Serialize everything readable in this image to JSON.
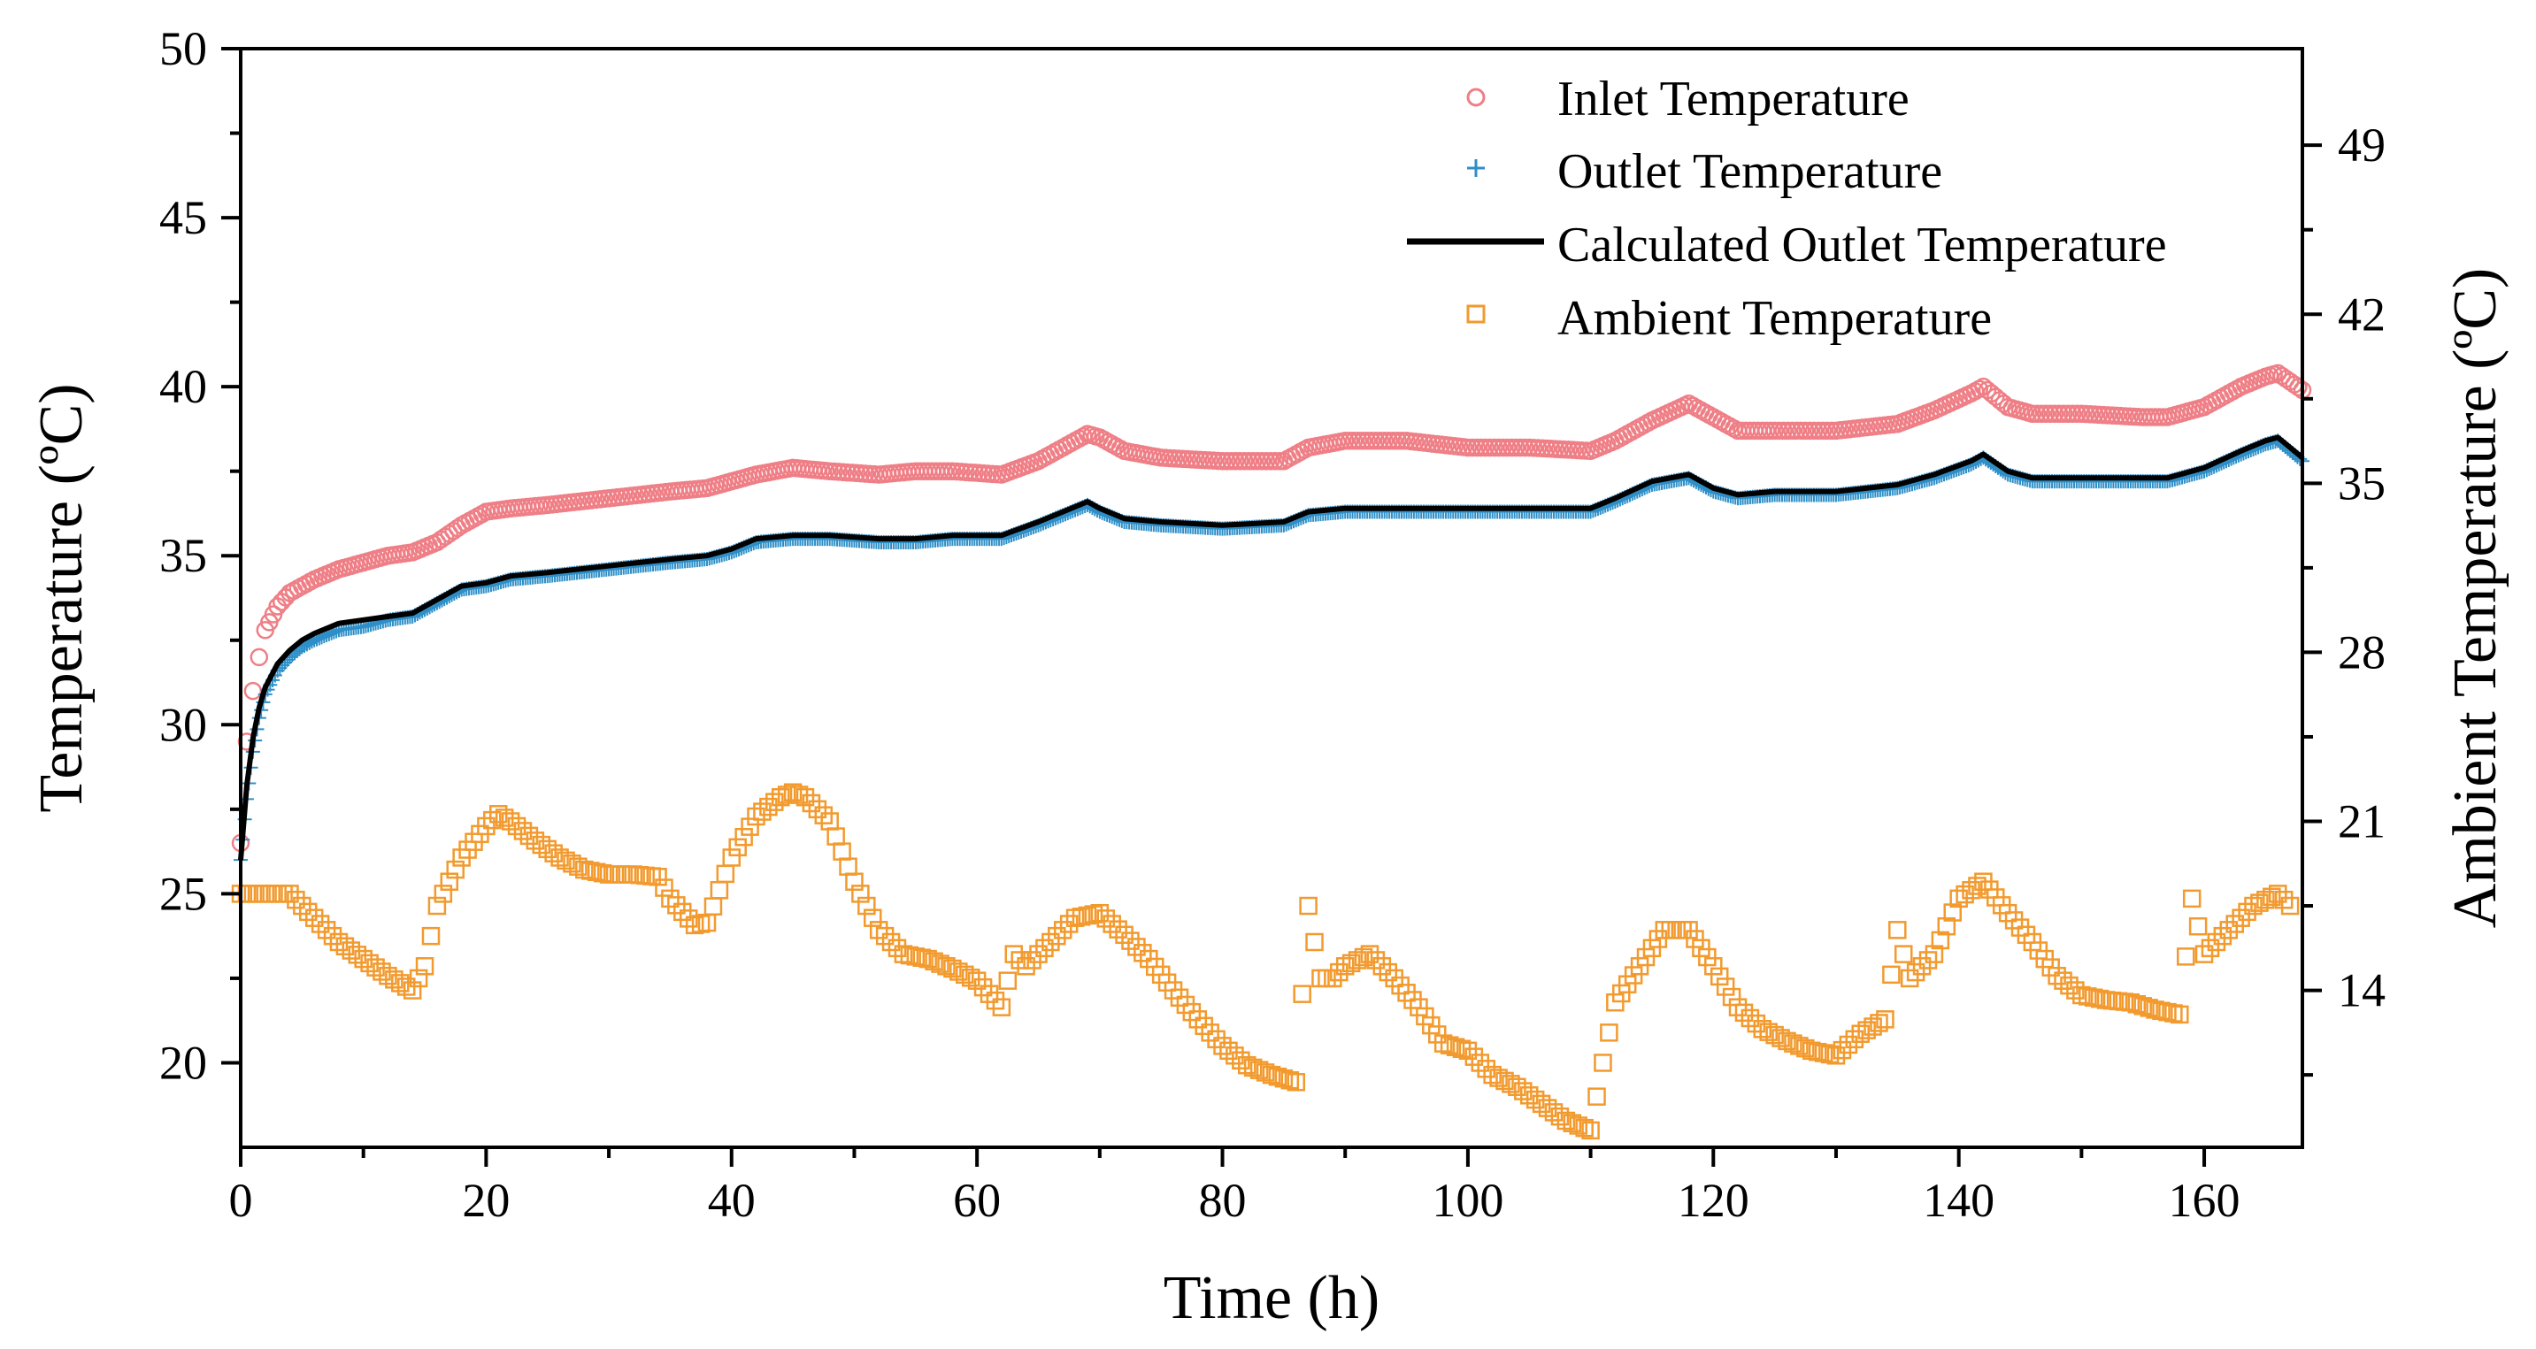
{
  "chart_data": {
    "type": "scatter",
    "title": "",
    "xlabel": "Time (h)",
    "ylabel": "Temperature (ºC)",
    "y2label": "Ambient Temperature (ºC)",
    "xlim": [
      0,
      168
    ],
    "ylim": [
      17.5,
      50
    ],
    "y2lim": [
      7.5,
      53
    ],
    "xticks": [
      "0",
      "20",
      "40",
      "60",
      "80",
      "100",
      "120",
      "140",
      "160"
    ],
    "yticks": [
      "20",
      "25",
      "30",
      "35",
      "40",
      "45",
      "50"
    ],
    "y2ticks": [
      "14",
      "21",
      "28",
      "35",
      "42",
      "49"
    ],
    "legend_position": "top-right",
    "colors": {
      "inlet": "#ef7f86",
      "outlet": "#2e8fc8",
      "calculated": "#000000",
      "ambient": "#f29a2e"
    },
    "series": [
      {
        "name": "Inlet Temperature",
        "marker": "circle",
        "axis": "left",
        "x": [
          0,
          0.5,
          1,
          1.5,
          2,
          3,
          4,
          5,
          6,
          8,
          10,
          12,
          14,
          16,
          18,
          20,
          22,
          25,
          30,
          35,
          38,
          40,
          42,
          45,
          48,
          52,
          55,
          58,
          62,
          65,
          67,
          69,
          70,
          72,
          75,
          80,
          85,
          87,
          90,
          95,
          100,
          105,
          110,
          112,
          115,
          118,
          120,
          122,
          125,
          130,
          135,
          138,
          141,
          142,
          144,
          146,
          150,
          155,
          157,
          160,
          163,
          165,
          166,
          168
        ],
        "y": [
          26.5,
          29.5,
          31.0,
          32.0,
          32.8,
          33.5,
          33.9,
          34.1,
          34.3,
          34.6,
          34.8,
          35.0,
          35.1,
          35.4,
          35.9,
          36.3,
          36.4,
          36.5,
          36.7,
          36.9,
          37.0,
          37.2,
          37.4,
          37.6,
          37.5,
          37.4,
          37.5,
          37.5,
          37.4,
          37.8,
          38.2,
          38.6,
          38.5,
          38.1,
          37.9,
          37.8,
          37.8,
          38.2,
          38.4,
          38.4,
          38.2,
          38.2,
          38.1,
          38.4,
          39.0,
          39.5,
          39.1,
          38.7,
          38.7,
          38.7,
          38.9,
          39.3,
          39.8,
          40.0,
          39.4,
          39.2,
          39.2,
          39.1,
          39.1,
          39.4,
          40.0,
          40.3,
          40.4,
          39.9
        ]
      },
      {
        "name": "Outlet Temperature",
        "marker": "plus",
        "axis": "left",
        "x": [
          0,
          0.5,
          1,
          1.5,
          2,
          3,
          4,
          5,
          6,
          8,
          10,
          12,
          14,
          16,
          18,
          20,
          22,
          25,
          30,
          35,
          38,
          40,
          42,
          45,
          48,
          52,
          55,
          58,
          62,
          65,
          67,
          69,
          70,
          72,
          75,
          80,
          85,
          87,
          90,
          95,
          100,
          105,
          110,
          112,
          115,
          118,
          120,
          122,
          125,
          130,
          135,
          138,
          141,
          142,
          144,
          146,
          150,
          155,
          157,
          160,
          163,
          165,
          166,
          168
        ],
        "y": [
          26.0,
          27.8,
          29.2,
          30.2,
          30.9,
          31.6,
          32.0,
          32.3,
          32.5,
          32.8,
          32.9,
          33.1,
          33.2,
          33.6,
          34.0,
          34.1,
          34.3,
          34.4,
          34.6,
          34.8,
          34.9,
          35.1,
          35.4,
          35.5,
          35.5,
          35.4,
          35.4,
          35.5,
          35.5,
          35.9,
          36.2,
          36.5,
          36.3,
          36.0,
          35.9,
          35.8,
          35.9,
          36.2,
          36.3,
          36.3,
          36.3,
          36.3,
          36.3,
          36.6,
          37.1,
          37.3,
          36.9,
          36.7,
          36.8,
          36.8,
          37.0,
          37.3,
          37.7,
          37.9,
          37.4,
          37.2,
          37.2,
          37.2,
          37.2,
          37.5,
          38.0,
          38.3,
          38.4,
          37.8
        ]
      },
      {
        "name": "Calculated Outlet Temperature",
        "marker": "line",
        "axis": "left",
        "x": [
          0,
          0.5,
          1,
          1.5,
          2,
          3,
          4,
          5,
          6,
          8,
          10,
          12,
          14,
          16,
          18,
          20,
          22,
          25,
          30,
          35,
          38,
          40,
          42,
          45,
          48,
          52,
          55,
          58,
          62,
          65,
          67,
          69,
          70,
          72,
          75,
          80,
          85,
          87,
          90,
          95,
          100,
          105,
          110,
          112,
          115,
          118,
          120,
          122,
          125,
          130,
          135,
          138,
          141,
          142,
          144,
          146,
          150,
          155,
          157,
          160,
          163,
          165,
          166,
          168
        ],
        "y": [
          26.0,
          28.2,
          29.6,
          30.5,
          31.1,
          31.8,
          32.2,
          32.5,
          32.7,
          33.0,
          33.1,
          33.2,
          33.3,
          33.7,
          34.1,
          34.2,
          34.4,
          34.5,
          34.7,
          34.9,
          35.0,
          35.2,
          35.5,
          35.6,
          35.6,
          35.5,
          35.5,
          35.6,
          35.6,
          36.0,
          36.3,
          36.6,
          36.4,
          36.1,
          36.0,
          35.9,
          36.0,
          36.3,
          36.4,
          36.4,
          36.4,
          36.4,
          36.4,
          36.7,
          37.2,
          37.4,
          37.0,
          36.8,
          36.9,
          36.9,
          37.1,
          37.4,
          37.8,
          38.0,
          37.5,
          37.3,
          37.3,
          37.3,
          37.3,
          37.6,
          38.1,
          38.4,
          38.5,
          37.9
        ]
      },
      {
        "name": "Ambient Temperature",
        "marker": "square",
        "axis": "right",
        "x": [
          0,
          2,
          4,
          6,
          8,
          10,
          12,
          14,
          15,
          16,
          18,
          20,
          21,
          22,
          24,
          26,
          28,
          30,
          32,
          34,
          35,
          37,
          38,
          40,
          42,
          44,
          45,
          46,
          48,
          50,
          52,
          54,
          56,
          58,
          60,
          62,
          63,
          64,
          66,
          68,
          70,
          72,
          74,
          76,
          78,
          80,
          82,
          84,
          86,
          87,
          88,
          89,
          90,
          92,
          94,
          96,
          98,
          100,
          102,
          104,
          106,
          108,
          110,
          111,
          112,
          114,
          116,
          118,
          120,
          122,
          124,
          126,
          128,
          130,
          132,
          134,
          135,
          136,
          138,
          140,
          142,
          144,
          146,
          148,
          150,
          152,
          154,
          156,
          158,
          159,
          160,
          162,
          164,
          166,
          167
        ],
        "y": [
          18.0,
          18.0,
          18.0,
          17.0,
          16.0,
          15.3,
          14.6,
          14.0,
          15.0,
          17.5,
          19.5,
          20.8,
          21.3,
          21.0,
          20.2,
          19.5,
          19.0,
          18.8,
          18.8,
          18.7,
          17.8,
          16.7,
          16.8,
          19.5,
          21.2,
          22.0,
          22.2,
          22.0,
          21.0,
          18.5,
          16.5,
          15.5,
          15.3,
          14.9,
          14.4,
          13.3,
          15.5,
          15.0,
          16.0,
          17.0,
          17.2,
          16.3,
          15.3,
          14.0,
          12.8,
          11.7,
          10.9,
          10.5,
          10.2,
          17.5,
          14.5,
          14.5,
          15.0,
          15.5,
          14.5,
          13.3,
          11.8,
          11.5,
          10.5,
          10.0,
          9.3,
          8.6,
          8.2,
          11.0,
          13.5,
          15.0,
          16.5,
          16.5,
          15.0,
          13.3,
          12.4,
          11.9,
          11.5,
          11.3,
          12.2,
          12.8,
          16.5,
          14.5,
          15.5,
          17.8,
          18.5,
          17.2,
          16.0,
          14.6,
          13.8,
          13.6,
          13.5,
          13.2,
          13.0,
          17.8,
          15.5,
          16.5,
          17.5,
          18.0,
          17.5
        ]
      }
    ]
  }
}
